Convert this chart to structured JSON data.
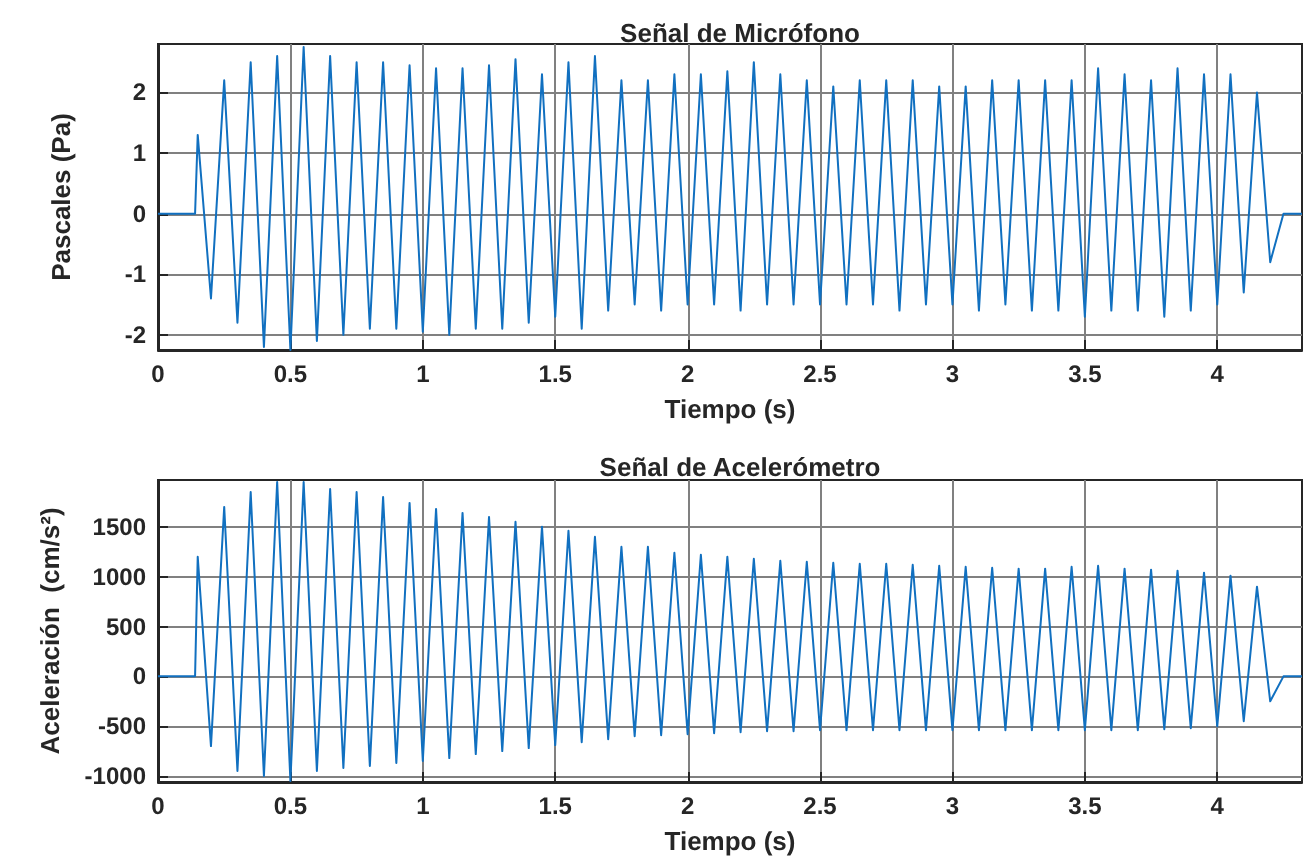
{
  "chart_data": [
    {
      "type": "line",
      "title": "Señal de Micrófono",
      "xlabel": "Tiempo (s)",
      "ylabel": "Pascales (Pa)",
      "xlim": [
        0,
        4.32
      ],
      "xticks": [
        0,
        0.5,
        1,
        1.5,
        2,
        2.5,
        3,
        3.5,
        4
      ],
      "ylim": [
        -2.25,
        2.8
      ],
      "yticks": [
        -2,
        -1,
        0,
        1,
        2
      ],
      "grid": true,
      "marker": "none",
      "line_style": "solid",
      "series": [
        {
          "color": "#1170c0",
          "x": [
            0,
            0.14,
            0.15,
            0.2,
            0.25,
            0.3,
            0.35,
            0.4,
            0.45,
            0.5,
            0.55,
            0.6,
            0.65,
            0.7,
            0.75,
            0.8,
            0.85,
            0.9,
            0.95,
            1.0,
            1.05,
            1.1,
            1.15,
            1.2,
            1.25,
            1.3,
            1.35,
            1.4,
            1.45,
            1.5,
            1.55,
            1.6,
            1.65,
            1.7,
            1.75,
            1.8,
            1.85,
            1.9,
            1.95,
            2.0,
            2.05,
            2.1,
            2.15,
            2.2,
            2.25,
            2.3,
            2.35,
            2.4,
            2.45,
            2.5,
            2.55,
            2.6,
            2.65,
            2.7,
            2.75,
            2.8,
            2.85,
            2.9,
            2.95,
            3.0,
            3.05,
            3.1,
            3.15,
            3.2,
            3.25,
            3.3,
            3.35,
            3.4,
            3.45,
            3.5,
            3.55,
            3.6,
            3.65,
            3.7,
            3.75,
            3.8,
            3.85,
            3.9,
            3.95,
            4.0,
            4.05,
            4.1,
            4.15,
            4.2,
            4.25,
            4.32
          ],
          "values": [
            0,
            0,
            1.3,
            -1.4,
            2.2,
            -1.8,
            2.5,
            -2.2,
            2.6,
            -2.25,
            2.75,
            -2.1,
            2.6,
            -2.0,
            2.5,
            -1.9,
            2.5,
            -1.9,
            2.45,
            -1.95,
            2.4,
            -2.0,
            2.4,
            -1.9,
            2.45,
            -1.9,
            2.55,
            -1.8,
            2.3,
            -1.7,
            2.5,
            -1.9,
            2.6,
            -1.6,
            2.2,
            -1.5,
            2.2,
            -1.6,
            2.3,
            -1.5,
            2.3,
            -1.5,
            2.35,
            -1.6,
            2.5,
            -1.5,
            2.3,
            -1.5,
            2.2,
            -1.5,
            2.1,
            -1.5,
            2.2,
            -1.5,
            2.2,
            -1.6,
            2.2,
            -1.5,
            2.1,
            -1.5,
            2.1,
            -1.6,
            2.2,
            -1.5,
            2.2,
            -1.6,
            2.2,
            -1.6,
            2.2,
            -1.7,
            2.4,
            -1.6,
            2.3,
            -1.6,
            2.2,
            -1.7,
            2.4,
            -1.6,
            2.3,
            -1.5,
            2.3,
            -1.3,
            2.0,
            -0.8,
            0,
            0
          ]
        }
      ]
    },
    {
      "type": "line",
      "title": "Señal de Acelerómetro",
      "xlabel": "Tiempo (s)",
      "ylabel": "Aceleración  (cm/s²)",
      "xlim": [
        0,
        4.32
      ],
      "xticks": [
        0,
        0.5,
        1,
        1.5,
        2,
        2.5,
        3,
        3.5,
        4
      ],
      "ylim": [
        -1060,
        1970
      ],
      "yticks": [
        -1000,
        -500,
        0,
        500,
        1000,
        1500
      ],
      "grid": true,
      "marker": "none",
      "line_style": "solid",
      "series": [
        {
          "color": "#1170c0",
          "x": [
            0,
            0.14,
            0.15,
            0.2,
            0.25,
            0.3,
            0.35,
            0.4,
            0.45,
            0.5,
            0.55,
            0.6,
            0.65,
            0.7,
            0.75,
            0.8,
            0.85,
            0.9,
            0.95,
            1.0,
            1.05,
            1.1,
            1.15,
            1.2,
            1.25,
            1.3,
            1.35,
            1.4,
            1.45,
            1.5,
            1.55,
            1.6,
            1.65,
            1.7,
            1.75,
            1.8,
            1.85,
            1.9,
            1.95,
            2.0,
            2.05,
            2.1,
            2.15,
            2.2,
            2.25,
            2.3,
            2.35,
            2.4,
            2.45,
            2.5,
            2.55,
            2.6,
            2.65,
            2.7,
            2.75,
            2.8,
            2.85,
            2.9,
            2.95,
            3.0,
            3.05,
            3.1,
            3.15,
            3.2,
            3.25,
            3.3,
            3.35,
            3.4,
            3.45,
            3.5,
            3.55,
            3.6,
            3.65,
            3.7,
            3.75,
            3.8,
            3.85,
            3.9,
            3.95,
            4.0,
            4.05,
            4.1,
            4.15,
            4.2,
            4.25,
            4.32
          ],
          "values": [
            0,
            0,
            1200,
            -700,
            1700,
            -950,
            1850,
            -1000,
            1950,
            -1050,
            1950,
            -950,
            1880,
            -920,
            1850,
            -900,
            1800,
            -870,
            1740,
            -850,
            1680,
            -820,
            1640,
            -780,
            1600,
            -750,
            1550,
            -720,
            1500,
            -690,
            1460,
            -660,
            1400,
            -630,
            1300,
            -600,
            1300,
            -590,
            1240,
            -580,
            1220,
            -570,
            1200,
            -560,
            1180,
            -550,
            1160,
            -550,
            1150,
            -540,
            1140,
            -540,
            1130,
            -540,
            1130,
            -540,
            1120,
            -540,
            1110,
            -540,
            1100,
            -540,
            1090,
            -540,
            1080,
            -540,
            1080,
            -540,
            1100,
            -540,
            1110,
            -540,
            1080,
            -540,
            1070,
            -530,
            1060,
            -520,
            1040,
            -500,
            1010,
            -450,
            900,
            -250,
            0,
            0
          ]
        }
      ]
    }
  ]
}
